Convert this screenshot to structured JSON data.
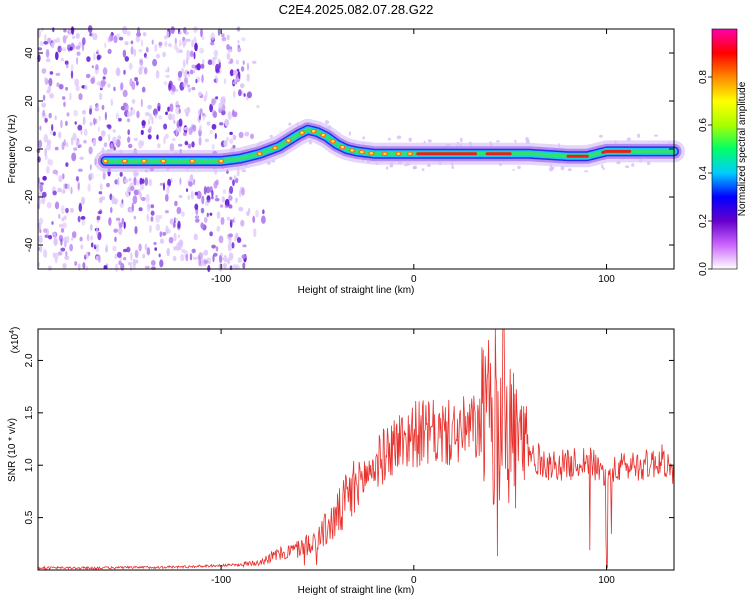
{
  "title": "C2E4.2025.082.07.28.G22",
  "chart_data": [
    {
      "type": "heatmap",
      "name": "spectrogram",
      "xlabel": "Height of straight line (km)",
      "ylabel": "Frequency (Hz)",
      "xlim": [
        -195,
        135
      ],
      "ylim": [
        -50,
        50
      ],
      "x_ticks": [
        -100,
        0,
        100
      ],
      "x_tick_labels": [
        "-100",
        "0",
        "100"
      ],
      "y_ticks": [
        -40,
        -20,
        0,
        20,
        40
      ],
      "y_tick_labels": [
        "-40",
        "-20",
        "0",
        "20",
        "40"
      ],
      "colorbar": {
        "label": "Normalized spectral amplitude",
        "range": [
          0,
          1
        ],
        "ticks": [
          0.0,
          0.2,
          0.4,
          0.6,
          0.8
        ],
        "tick_labels": [
          "0.0",
          "0.2",
          "0.4",
          "0.6",
          "0.8"
        ],
        "colormap": [
          "#ffffff",
          "#cc66ff",
          "#6600cc",
          "#0000ff",
          "#00ccff",
          "#00ff66",
          "#aaff00",
          "#ffff00",
          "#ff8800",
          "#ff0000",
          "#ff00aa"
        ]
      },
      "ridge": {
        "x": [
          -160,
          -140,
          -120,
          -100,
          -90,
          -80,
          -70,
          -60,
          -55,
          -50,
          -45,
          -40,
          -35,
          -30,
          -20,
          -10,
          0,
          10,
          20,
          40,
          60,
          80,
          90,
          100,
          110,
          120,
          135
        ],
        "y": [
          -5,
          -5,
          -5,
          -5,
          -4,
          -2,
          1,
          6,
          8,
          7,
          5,
          2,
          0,
          -1,
          -2,
          -2,
          -2,
          -2,
          -2,
          -2,
          -2,
          -3,
          -3,
          -1,
          -1,
          -1,
          -1
        ]
      },
      "noise_region_x": [
        -195,
        -88
      ]
    },
    {
      "type": "line",
      "name": "snr",
      "xlabel": "Height of straight line (km)",
      "ylabel": "SNR (10 * v/v)",
      "y_multiplier_label": "(x10",
      "y_multiplier_exp": "4",
      "y_multiplier_close": ")",
      "xlim": [
        -195,
        135
      ],
      "ylim": [
        0,
        2.3
      ],
      "x_ticks": [
        -100,
        0,
        100
      ],
      "x_tick_labels": [
        "-100",
        "0",
        "100"
      ],
      "y_ticks": [
        0.5,
        1.0,
        1.5,
        2.0
      ],
      "y_tick_labels": [
        "0.5",
        "1.0",
        "1.5",
        "2.0"
      ],
      "color": "#e8302c",
      "envelope": {
        "x": [
          -195,
          -160,
          -120,
          -90,
          -80,
          -70,
          -60,
          -50,
          -40,
          -30,
          -20,
          -10,
          0,
          10,
          20,
          30,
          40,
          45,
          50,
          60,
          70,
          80,
          90,
          100,
          110,
          120,
          130,
          135
        ],
        "y": [
          0.02,
          0.02,
          0.03,
          0.05,
          0.08,
          0.15,
          0.2,
          0.3,
          0.5,
          0.8,
          1.0,
          1.2,
          1.3,
          1.3,
          1.3,
          1.35,
          1.4,
          1.5,
          1.3,
          1.1,
          1.0,
          1.0,
          1.05,
          0.9,
          1.0,
          1.0,
          1.05,
          0.9
        ]
      }
    }
  ]
}
